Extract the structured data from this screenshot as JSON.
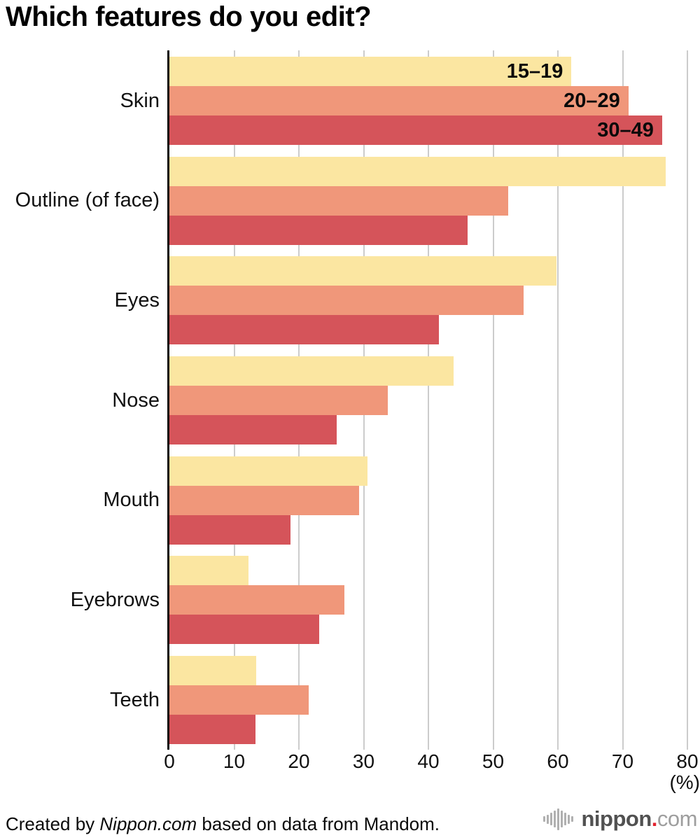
{
  "page": {
    "title": "Which features do you edit?"
  },
  "chart_data": {
    "type": "bar",
    "orientation": "horizontal",
    "title": "Which features do you edit?",
    "categories": [
      "Skin",
      "Outline (of face)",
      "Eyes",
      "Nose",
      "Mouth",
      "Eyebrows",
      "Teeth"
    ],
    "series": [
      {
        "name": "15–19",
        "color": "#FBE6A1",
        "values": [
          62.1,
          76.7,
          59.8,
          43.9,
          30.6,
          12.2,
          13.4
        ]
      },
      {
        "name": "20–29",
        "color": "#F0977A",
        "values": [
          70.9,
          52.3,
          54.7,
          33.7,
          29.3,
          27.0,
          21.5
        ]
      },
      {
        "name": "30–49",
        "color": "#D5545A",
        "values": [
          76.1,
          46.0,
          41.6,
          25.8,
          18.7,
          23.1,
          13.3
        ]
      }
    ],
    "x_axis": {
      "ticks": [
        0,
        10,
        20,
        30,
        40,
        50,
        60,
        70,
        80
      ],
      "min": 0,
      "max": 80,
      "unit_label": "(%)"
    },
    "grid": true,
    "legend_position": "labels-inside-first-group",
    "gridline_color": "#cccccc",
    "axis_color": "#0a0a0a"
  },
  "footer": {
    "credit_prefix": "Created by ",
    "credit_source": "Nippon.com",
    "credit_suffix": " based on data from Mandom.",
    "logo": {
      "name": "nippon",
      "dot": ".",
      "tld": "com"
    }
  }
}
